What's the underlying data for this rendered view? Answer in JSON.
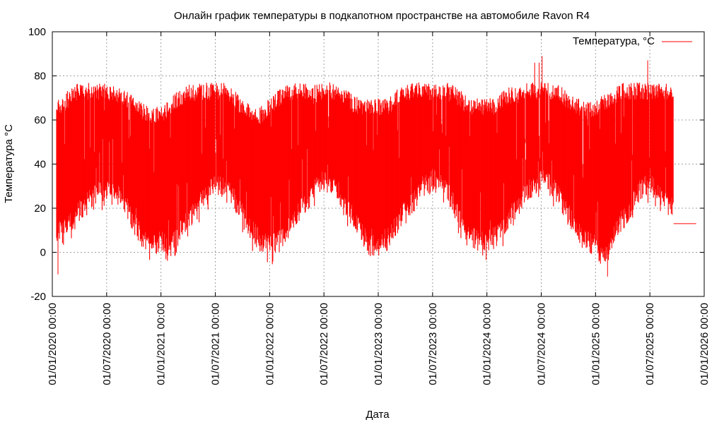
{
  "chart_data": {
    "type": "line",
    "title": "Онлайн график температуры в подкапотном пространстве на автомобиле Ravon R4",
    "xlabel": "Дата",
    "ylabel": "Температура °C",
    "legend": {
      "label": "Температура, °C",
      "placement": "top-right"
    },
    "series_color": "#ff0000",
    "grid": true,
    "ylim": [
      -20,
      100
    ],
    "yticks": [
      -20,
      0,
      20,
      40,
      60,
      80,
      100
    ],
    "xlim": [
      "01/01/2020 00:00",
      "01/01/2026 00:00"
    ],
    "xticks": [
      "01/01/2020 00:00",
      "01/07/2020 00:00",
      "01/01/2021 00:00",
      "01/07/2021 00:00",
      "01/01/2022 00:00",
      "01/07/2022 00:00",
      "01/01/2023 00:00",
      "01/07/2023 00:00",
      "01/01/2024 00:00",
      "01/07/2024 00:00",
      "01/01/2025 00:00",
      "01/07/2025 00:00",
      "01/01/2026 00:00"
    ],
    "monthly_envelope": {
      "start_month": "2020-01",
      "low": [
        2,
        5,
        8,
        14,
        18,
        22,
        24,
        22,
        18,
        8,
        2,
        -2,
        0,
        -2,
        5,
        10,
        15,
        22,
        25,
        25,
        20,
        12,
        5,
        0,
        -2,
        0,
        5,
        12,
        17,
        24,
        27,
        27,
        20,
        12,
        5,
        -2,
        -2,
        2,
        7,
        14,
        18,
        24,
        28,
        27,
        20,
        10,
        4,
        0,
        0,
        2,
        8,
        14,
        20,
        25,
        28,
        27,
        20,
        12,
        4,
        0,
        -2,
        -8,
        2,
        10,
        16,
        24,
        26,
        22,
        16
      ],
      "high": [
        70,
        70,
        75,
        77,
        77,
        77,
        77,
        76,
        74,
        70,
        68,
        66,
        66,
        70,
        74,
        76,
        77,
        77,
        77,
        77,
        74,
        70,
        67,
        66,
        70,
        74,
        77,
        77,
        77,
        77,
        77,
        77,
        76,
        72,
        70,
        70,
        70,
        70,
        74,
        76,
        77,
        77,
        77,
        77,
        77,
        74,
        70,
        70,
        70,
        70,
        74,
        76,
        77,
        77,
        77,
        77,
        76,
        72,
        70,
        68,
        70,
        72,
        75,
        77,
        77,
        77,
        77,
        77,
        77
      ]
    },
    "peaks": [
      {
        "date": "2024-06-10",
        "value": 86
      },
      {
        "date": "2024-06-25",
        "value": 86
      },
      {
        "date": "2024-07-05",
        "value": 89
      },
      {
        "date": "2025-06-25",
        "value": 87
      }
    ],
    "minima": [
      {
        "date": "2020-01-20",
        "value": -10
      },
      {
        "date": "2025-02-10",
        "value": -11
      }
    ],
    "tail": {
      "from": "2025-09-20",
      "to": "2025-12-05",
      "value": 13
    }
  }
}
